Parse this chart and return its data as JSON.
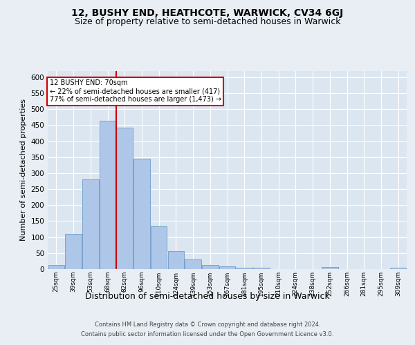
{
  "title_line1": "12, BUSHY END, HEATHCOTE, WARWICK, CV34 6GJ",
  "title_line2": "Size of property relative to semi-detached houses in Warwick",
  "xlabel": "Distribution of semi-detached houses by size in Warwick",
  "ylabel": "Number of semi-detached properties",
  "footer_line1": "Contains HM Land Registry data © Crown copyright and database right 2024.",
  "footer_line2": "Contains public sector information licensed under the Open Government Licence v3.0.",
  "annotation_title": "12 BUSHY END: 70sqm",
  "annotation_line1": "← 22% of semi-detached houses are smaller (417)",
  "annotation_line2": "77% of semi-detached houses are larger (1,473) →",
  "bar_categories": [
    "25sqm",
    "39sqm",
    "53sqm",
    "68sqm",
    "82sqm",
    "96sqm",
    "110sqm",
    "124sqm",
    "139sqm",
    "153sqm",
    "167sqm",
    "181sqm",
    "195sqm",
    "210sqm",
    "224sqm",
    "238sqm",
    "252sqm",
    "266sqm",
    "281sqm",
    "295sqm",
    "309sqm"
  ],
  "bar_values": [
    12,
    110,
    280,
    463,
    443,
    345,
    133,
    57,
    30,
    13,
    8,
    5,
    5,
    0,
    0,
    0,
    6,
    0,
    0,
    0,
    4
  ],
  "bar_color": "#aec6e8",
  "bar_edge_color": "#5a8fc2",
  "vline_x_index": 3.5,
  "vline_color": "#cc0000",
  "annotation_box_color": "#ffffff",
  "annotation_box_edge_color": "#cc0000",
  "ylim": [
    0,
    620
  ],
  "yticks": [
    0,
    50,
    100,
    150,
    200,
    250,
    300,
    350,
    400,
    450,
    500,
    550,
    600
  ],
  "background_color": "#e8eef4",
  "plot_bg_color": "#dce6f0",
  "grid_color": "#ffffff",
  "title1_fontsize": 10,
  "title2_fontsize": 9,
  "xlabel_fontsize": 9,
  "ylabel_fontsize": 8
}
